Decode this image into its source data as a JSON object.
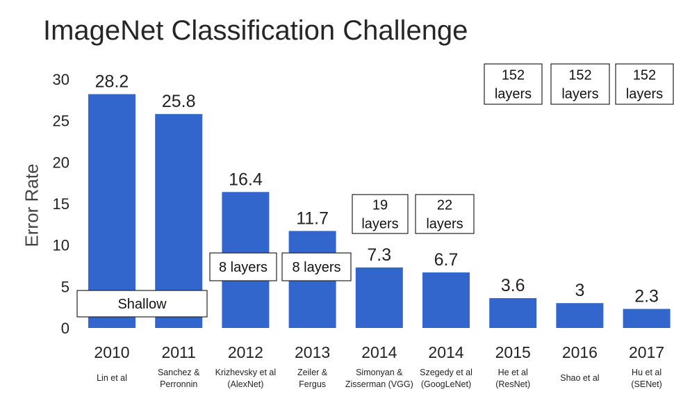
{
  "chart_data": {
    "type": "bar",
    "title": "ImageNet Classification Challenge",
    "ylabel": "Error Rate",
    "xlabel": "",
    "ylim": [
      0,
      30
    ],
    "yticks": [
      "0",
      "5",
      "10",
      "15",
      "20",
      "25",
      "30"
    ],
    "bar_color": "#3366CC",
    "categories": [
      {
        "year": "2010",
        "authors": [
          "Lin et al"
        ]
      },
      {
        "year": "2011",
        "authors": [
          "Sanchez &",
          "Perronnin"
        ]
      },
      {
        "year": "2012",
        "authors": [
          "Krizhevsky et al",
          "(AlexNet)"
        ]
      },
      {
        "year": "2013",
        "authors": [
          "Zeiler &",
          "Fergus"
        ]
      },
      {
        "year": "2014",
        "authors": [
          "Simonyan &",
          "Zisserman (VGG)"
        ]
      },
      {
        "year": "2014",
        "authors": [
          "Szegedy et al",
          "(GoogLeNet)"
        ]
      },
      {
        "year": "2015",
        "authors": [
          "He et al",
          "(ResNet)"
        ]
      },
      {
        "year": "2016",
        "authors": [
          "Shao et al"
        ]
      },
      {
        "year": "2017",
        "authors": [
          "Hu et al",
          "(SENet)"
        ]
      }
    ],
    "values": [
      28.2,
      25.8,
      16.4,
      11.7,
      7.3,
      6.7,
      3.6,
      3,
      2.3
    ],
    "value_labels": [
      "28.2",
      "25.8",
      "16.4",
      "11.7",
      "7.3",
      "6.7",
      "3.6",
      "3",
      "2.3"
    ],
    "annotations": [
      {
        "bars": [
          0,
          1
        ],
        "lines": [
          "Shallow"
        ]
      },
      {
        "bars": [
          2
        ],
        "lines": [
          "8 layers"
        ]
      },
      {
        "bars": [
          3
        ],
        "lines": [
          "8 layers"
        ]
      },
      {
        "bars": [
          4
        ],
        "lines": [
          "19",
          "layers"
        ]
      },
      {
        "bars": [
          5
        ],
        "lines": [
          "22",
          "layers"
        ]
      },
      {
        "bars": [
          6
        ],
        "lines": [
          "152",
          "layers"
        ]
      },
      {
        "bars": [
          7
        ],
        "lines": [
          "152",
          "layers"
        ]
      },
      {
        "bars": [
          8
        ],
        "lines": [
          "152",
          "layers"
        ]
      }
    ]
  }
}
